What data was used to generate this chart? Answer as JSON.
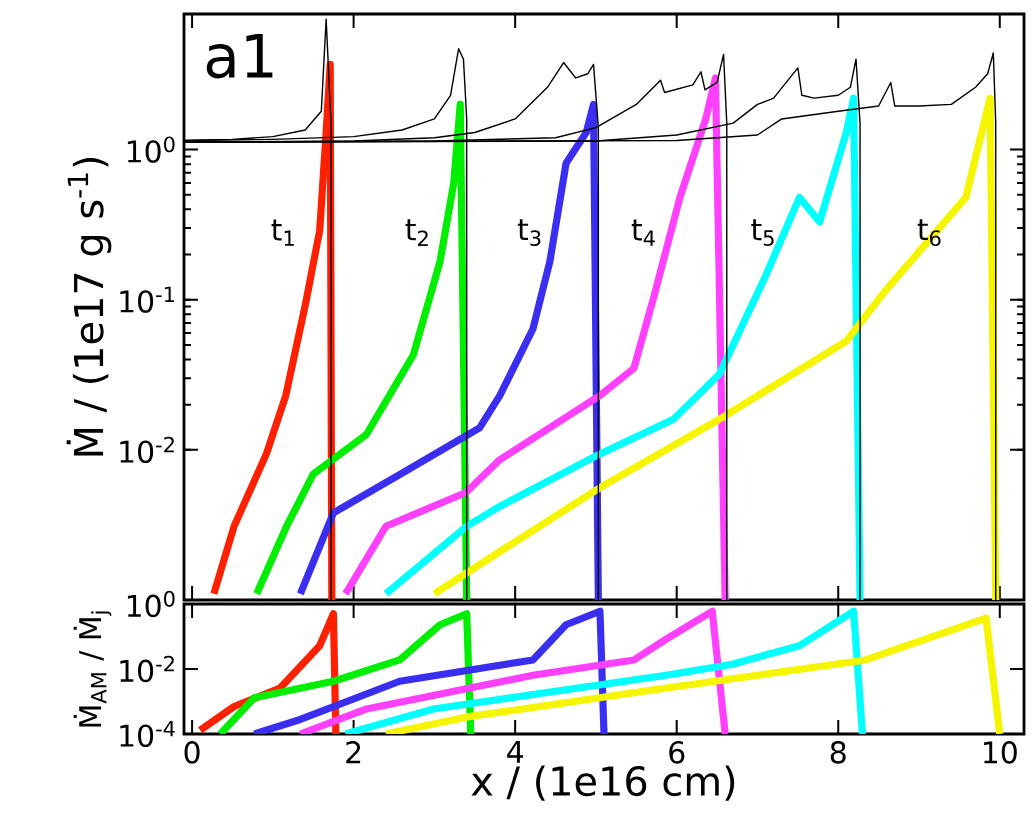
{
  "chart_data": [
    {
      "type": "line",
      "title": "a1",
      "ylabel": "Ṁ / (1e17 g s$^{-1}$)",
      "log": "y",
      "xlim": [
        -0.1,
        10.3
      ],
      "ylim": [
        0.001,
        8
      ],
      "xticks": [
        0,
        2,
        4,
        6,
        8,
        10
      ],
      "yticks": [
        {
          "value": 0.01,
          "label": "10$^{-2}$"
        },
        {
          "value": 0.1,
          "label": "10$^{-1}$"
        },
        {
          "value": 1,
          "label": "10$^{0}$"
        }
      ],
      "tick_labels": "y",
      "series": [
        {
          "name": "t$_{1}$",
          "color": "#ff2000",
          "x": [
            0.27,
            0.52,
            0.92,
            1.16,
            1.41,
            1.58,
            1.66,
            1.71,
            1.73
          ],
          "values": [
            0.0011,
            0.0031,
            0.0094,
            0.023,
            0.097,
            0.29,
            1.3,
            3.7,
            0.001
          ]
        },
        {
          "name": "t$_{2}$",
          "color": "#00ee00",
          "x": [
            0.8,
            1.17,
            1.5,
            2.16,
            2.74,
            3.07,
            3.24,
            3.32,
            3.4
          ],
          "values": [
            0.0011,
            0.0031,
            0.0069,
            0.0127,
            0.043,
            0.18,
            0.6,
            2.0,
            0.001
          ]
        },
        {
          "name": "t$_{3}$",
          "color": "#3a2ff0",
          "x": [
            1.34,
            1.75,
            2.58,
            3.56,
            3.81,
            4.22,
            4.43,
            4.63,
            4.88,
            4.97,
            5.03
          ],
          "values": [
            0.0011,
            0.0038,
            0.0069,
            0.014,
            0.023,
            0.064,
            0.18,
            0.81,
            1.3,
            2.0,
            0.001
          ]
        },
        {
          "name": "t$_{4}$",
          "color": "#ff40ff",
          "x": [
            1.9,
            2.4,
            3.39,
            3.81,
            5.05,
            5.47,
            5.72,
            6.04,
            6.36,
            6.48,
            6.6
          ],
          "values": [
            0.0011,
            0.0031,
            0.0052,
            0.0086,
            0.023,
            0.035,
            0.106,
            0.48,
            1.6,
            3.0,
            0.001
          ]
        },
        {
          "name": "t$_{5}$",
          "color": "#00ffff",
          "x": [
            2.4,
            3.4,
            3.81,
            5.05,
            5.96,
            6.53,
            7.1,
            7.52,
            7.77,
            8.1,
            8.19,
            8.27
          ],
          "values": [
            0.0011,
            0.0031,
            0.0042,
            0.0094,
            0.016,
            0.032,
            0.144,
            0.48,
            0.33,
            1.3,
            2.2,
            0.001
          ]
        },
        {
          "name": "t$_{6}$",
          "color": "#f5f500",
          "x": [
            3.0,
            3.81,
            5.05,
            6.53,
            8.1,
            8.59,
            9.58,
            9.88,
            9.95
          ],
          "values": [
            0.0011,
            0.0021,
            0.0056,
            0.016,
            0.053,
            0.116,
            0.48,
            2.2,
            0.001
          ]
        },
        {
          "color": "#000000",
          "x": [
            -0.1,
            0.5,
            1.0,
            1.4,
            1.6,
            1.66,
            1.72,
            1.72
          ],
          "values": [
            1.15,
            1.17,
            1.22,
            1.35,
            1.8,
            7.4,
            1.5,
            0.001
          ]
        },
        {
          "color": "#000000",
          "x": [
            -0.1,
            1.0,
            2.0,
            2.6,
            3.0,
            3.2,
            3.3,
            3.36,
            3.4,
            3.4
          ],
          "values": [
            1.15,
            1.17,
            1.22,
            1.35,
            1.6,
            2.3,
            4.7,
            4.0,
            1.6,
            0.001
          ]
        },
        {
          "color": "#000000",
          "x": [
            -0.1,
            2.0,
            3.0,
            3.5,
            4.0,
            4.4,
            4.6,
            4.75,
            4.9,
            4.97,
            5.03,
            5.03
          ],
          "values": [
            1.12,
            1.14,
            1.2,
            1.3,
            1.6,
            2.6,
            3.8,
            3.0,
            3.2,
            3.7,
            1.4,
            0.001
          ]
        },
        {
          "color": "#000000",
          "x": [
            -0.1,
            3.0,
            4.5,
            5.0,
            5.5,
            5.8,
            5.85,
            6.2,
            6.3,
            6.35,
            6.5,
            6.58,
            6.62,
            6.62
          ],
          "values": [
            1.12,
            1.14,
            1.2,
            1.4,
            2.0,
            2.9,
            2.4,
            2.7,
            3.3,
            2.5,
            2.8,
            4.3,
            1.5,
            0.001
          ]
        },
        {
          "color": "#000000",
          "x": [
            -0.1,
            5.0,
            6.0,
            6.7,
            7.0,
            7.2,
            7.5,
            7.55,
            7.7,
            8.0,
            8.15,
            8.22,
            8.27,
            8.27
          ],
          "values": [
            1.12,
            1.14,
            1.25,
            1.5,
            2.0,
            2.2,
            3.5,
            2.3,
            2.2,
            2.3,
            2.6,
            4.0,
            1.5,
            0.001
          ]
        },
        {
          "color": "#000000",
          "x": [
            -0.1,
            6.0,
            7.0,
            7.3,
            8.0,
            8.5,
            8.65,
            8.7,
            9.0,
            9.4,
            9.7,
            9.85,
            9.92,
            9.95,
            9.95
          ],
          "values": [
            1.12,
            1.15,
            1.25,
            1.6,
            1.8,
            1.95,
            2.8,
            1.95,
            1.95,
            2.0,
            2.6,
            3.2,
            4.4,
            1.5,
            0.001
          ]
        }
      ]
    },
    {
      "type": "line",
      "xlabel": "x / (1e16 cm)",
      "ylabel": "Ṁ$_{AM}$ / Ṁ$_{j}$",
      "log": "y",
      "xlim": [
        -0.1,
        10.3
      ],
      "ylim": [
        0.0001,
        1
      ],
      "xticks": [
        0,
        2,
        4,
        6,
        8,
        10
      ],
      "yticks": [
        {
          "value": 0.0001,
          "label": "10$^{-4}$"
        },
        {
          "value": 0.01,
          "label": "10$^{-2}$"
        },
        {
          "value": 1,
          "label": "10$^{0}$"
        }
      ],
      "series": [
        {
          "color": "#ff2000",
          "x": [
            0.1,
            0.52,
            1.09,
            1.58,
            1.75,
            1.78
          ],
          "values": [
            0.00013,
            0.0007,
            0.0026,
            0.052,
            0.5,
            0.0001
          ]
        },
        {
          "color": "#00ee00",
          "x": [
            0.35,
            0.77,
            1.75,
            2.57,
            3.07,
            3.4,
            3.45
          ],
          "values": [
            0.0001,
            0.0013,
            0.0042,
            0.019,
            0.23,
            0.5,
            0.0001
          ]
        },
        {
          "color": "#3a2ff0",
          "x": [
            0.77,
            1.34,
            2.57,
            4.22,
            4.63,
            5.05,
            5.1
          ],
          "values": [
            0.0001,
            0.00028,
            0.0042,
            0.019,
            0.23,
            0.6,
            0.0001
          ]
        },
        {
          "color": "#ff40ff",
          "x": [
            1.34,
            2.16,
            4.22,
            5.47,
            5.87,
            6.44,
            6.6
          ],
          "values": [
            0.0001,
            0.00059,
            0.0064,
            0.019,
            0.083,
            0.6,
            0.0001
          ]
        },
        {
          "color": "#00ffff",
          "x": [
            1.9,
            2.99,
            5.87,
            6.69,
            7.52,
            8.19,
            8.3
          ],
          "values": [
            0.0001,
            0.00059,
            0.0064,
            0.014,
            0.052,
            0.6,
            0.0001
          ]
        },
        {
          "color": "#f5f500",
          "x": [
            2.4,
            3.39,
            5.87,
            8.34,
            9.83,
            10.0
          ],
          "values": [
            0.0001,
            0.00033,
            0.0026,
            0.019,
            0.37,
            0.0001
          ]
        }
      ]
    }
  ]
}
